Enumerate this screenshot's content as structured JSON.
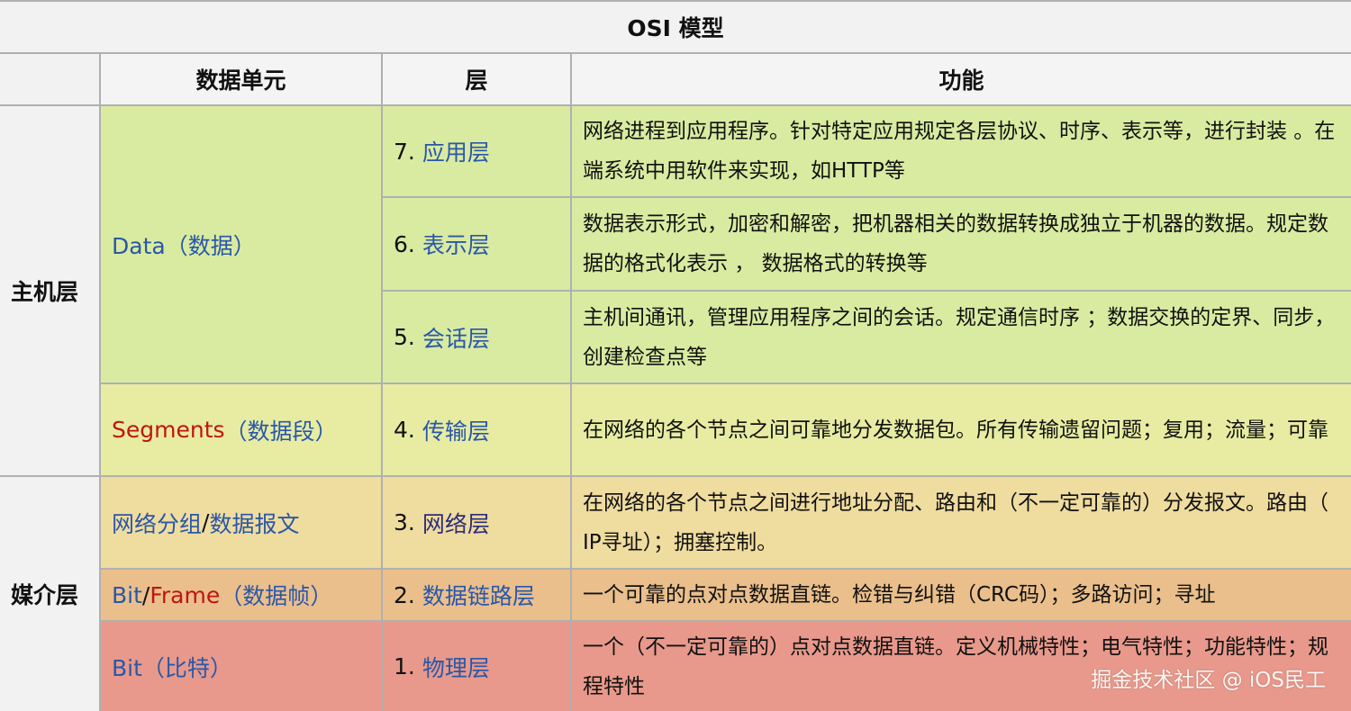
{
  "title": "OSI 模型",
  "headers": {
    "unit": "数据单元",
    "layer": "层",
    "function": "功能"
  },
  "groups": {
    "host": "主机层",
    "media": "媒介层"
  },
  "units": {
    "data": {
      "en": "Data",
      "zh": "（数据）"
    },
    "segments": {
      "en": "Segments",
      "zh": "（数据段）"
    },
    "packet": {
      "a": "网络分组",
      "sep": "/",
      "b": "数据报文"
    },
    "frame": {
      "a": "Bit",
      "sep": "/",
      "b": "Frame",
      "zh": "（数据帧）"
    },
    "bit": {
      "en": "Bit",
      "zh": "（比特）"
    }
  },
  "layers": [
    {
      "num": "7.",
      "name": "应用层",
      "function": "网络进程到应用程序。针对特定应用规定各层协议、时序、表示等，进行封装 。在端系统中用软件来实现，如HTTP等"
    },
    {
      "num": "6.",
      "name": "表示层",
      "function": "数据表示形式，加密和解密，把机器相关的数据转换成独立于机器的数据。规定数据的格式化表示 ， 数据格式的转换等"
    },
    {
      "num": "5.",
      "name": "会话层",
      "function": "主机间通讯，管理应用程序之间的会话。规定通信时序 ；数据交换的定界、同步，创建检查点等"
    },
    {
      "num": "4.",
      "name": "传输层",
      "function": "在网络的各个节点之间可靠地分发数据包。所有传输遗留问题；复用；流量；可靠"
    },
    {
      "num": "3.",
      "name": "网络层",
      "function": "在网络的各个节点之间进行地址分配、路由和（不一定可靠的）分发报文。路由（ IP寻址）；拥塞控制。"
    },
    {
      "num": "2.",
      "name": "数据链路层",
      "function": "一个可靠的点对点数据直链。检错与纠错（CRC码）；多路访问；寻址"
    },
    {
      "num": "1.",
      "name": "物理层",
      "function": "一个（不一定可靠的）点对点数据直链。定义机械特性；电气特性；功能特性；规程特性"
    }
  ],
  "watermark": "掘金技术社区 @ iOS民工",
  "colors": {
    "application": "#d9eba1",
    "transport": "#e7eca2",
    "network": "#efdc9f",
    "datalink": "#eabf8c",
    "physical": "#e8998b",
    "link": "#2a57a8",
    "red_text": "#c0150f"
  }
}
